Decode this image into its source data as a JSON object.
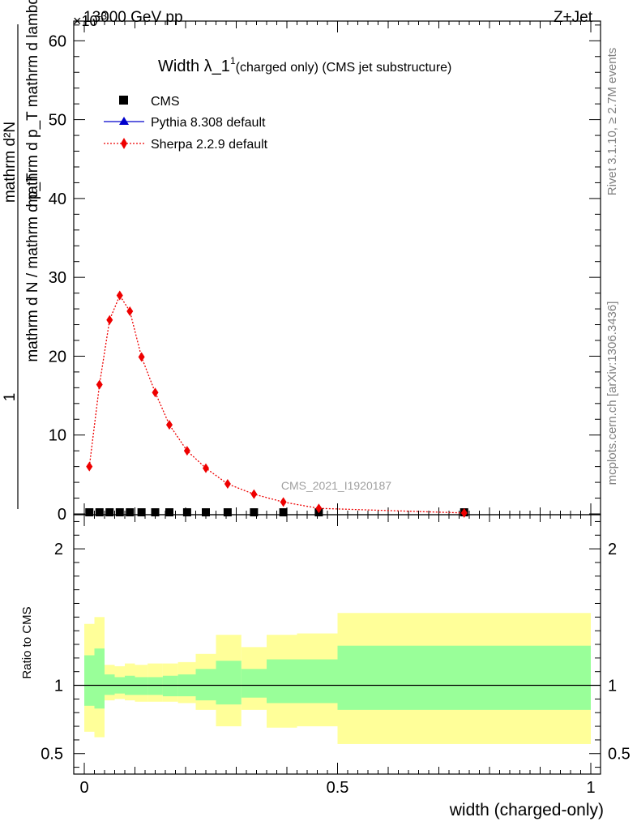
{
  "header": {
    "left": "13000 GeV pp",
    "right": "Z+Jet",
    "exponent": "×10",
    "exponent_power": "-3"
  },
  "side_labels": {
    "rivet": "Rivet 3.1.10, ≥ 2.7M events",
    "mcplots": "mcplots.cern.ch [arXiv:1306.3436]"
  },
  "watermark": "CMS_2021_I1920187",
  "chart_data": [
    {
      "type": "line",
      "title": "Width λ_1",
      "title_sup": "1",
      "subtitle": "(charged only) (CMS jet substructure)",
      "ylabel_top": "mathrm d²N",
      "ylabel_bottom": "mathrm d p_T mathrm d lambda",
      "ylabel_prefix_top": "1",
      "ylabel_prefix_bottom": "mathrm d N / mathrm d p_T",
      "xlim": [
        0,
        1
      ],
      "ylim": [
        0,
        62.5
      ],
      "y_scale_label": "×10^-3",
      "yticks": [
        0,
        10,
        20,
        30,
        40,
        50,
        60
      ],
      "series": [
        {
          "name": "CMS",
          "marker": "square",
          "color": "#000000",
          "x": [
            0.01,
            0.03,
            0.05,
            0.07,
            0.09,
            0.113,
            0.14,
            0.168,
            0.203,
            0.24,
            0.283,
            0.335,
            0.393,
            0.463,
            0.75
          ],
          "y": [
            0.2,
            0.2,
            0.2,
            0.2,
            0.2,
            0.2,
            0.2,
            0.2,
            0.2,
            0.2,
            0.2,
            0.2,
            0.2,
            0.2,
            0.2
          ]
        },
        {
          "name": "Pythia 8.308 default",
          "marker": "triangle",
          "color": "#0000cc",
          "x": [],
          "y": []
        },
        {
          "name": "Sherpa 2.2.9 default",
          "marker": "diamond",
          "color": "#ee0000",
          "x": [
            0.01,
            0.03,
            0.05,
            0.07,
            0.09,
            0.113,
            0.14,
            0.168,
            0.203,
            0.24,
            0.283,
            0.335,
            0.393,
            0.463,
            0.75
          ],
          "y": [
            6.0,
            16.4,
            24.6,
            27.7,
            25.7,
            19.9,
            15.4,
            11.3,
            8.0,
            5.8,
            3.8,
            2.5,
            1.5,
            0.7,
            0.12
          ]
        }
      ],
      "legend": [
        "CMS",
        "Pythia 8.308 default",
        "Sherpa 2.2.9 default"
      ],
      "legend_position": "top-left"
    },
    {
      "type": "area",
      "ylabel": "Ratio to CMS",
      "xlabel": "width (charged-only)",
      "xlim": [
        0,
        1
      ],
      "ylim": [
        0.35,
        2.25
      ],
      "yticks": [
        0.5,
        1,
        2
      ],
      "xticks": [
        0,
        0.5,
        1
      ],
      "xtick_labels": [
        "0",
        "0.5",
        "1"
      ],
      "bins": [
        {
          "lo": 0.0,
          "hi": 0.02,
          "inner_lo": 0.85,
          "inner_hi": 1.22,
          "outer_lo": 0.66,
          "outer_hi": 1.45
        },
        {
          "lo": 0.02,
          "hi": 0.04,
          "inner_lo": 0.83,
          "inner_hi": 1.27,
          "outer_lo": 0.62,
          "outer_hi": 1.5
        },
        {
          "lo": 0.04,
          "hi": 0.06,
          "inner_lo": 0.93,
          "inner_hi": 1.08,
          "outer_lo": 0.89,
          "outer_hi": 1.15
        },
        {
          "lo": 0.06,
          "hi": 0.08,
          "inner_lo": 0.94,
          "inner_hi": 1.06,
          "outer_lo": 0.9,
          "outer_hi": 1.14
        },
        {
          "lo": 0.08,
          "hi": 0.1,
          "inner_lo": 0.93,
          "inner_hi": 1.07,
          "outer_lo": 0.89,
          "outer_hi": 1.16
        },
        {
          "lo": 0.1,
          "hi": 0.125,
          "inner_lo": 0.93,
          "inner_hi": 1.06,
          "outer_lo": 0.88,
          "outer_hi": 1.15
        },
        {
          "lo": 0.125,
          "hi": 0.155,
          "inner_lo": 0.93,
          "inner_hi": 1.06,
          "outer_lo": 0.88,
          "outer_hi": 1.16
        },
        {
          "lo": 0.155,
          "hi": 0.185,
          "inner_lo": 0.92,
          "inner_hi": 1.07,
          "outer_lo": 0.88,
          "outer_hi": 1.16
        },
        {
          "lo": 0.185,
          "hi": 0.22,
          "inner_lo": 0.92,
          "inner_hi": 1.08,
          "outer_lo": 0.87,
          "outer_hi": 1.17
        },
        {
          "lo": 0.22,
          "hi": 0.26,
          "inner_lo": 0.89,
          "inner_hi": 1.12,
          "outer_lo": 0.82,
          "outer_hi": 1.23
        },
        {
          "lo": 0.26,
          "hi": 0.31,
          "inner_lo": 0.86,
          "inner_hi": 1.18,
          "outer_lo": 0.7,
          "outer_hi": 1.37
        },
        {
          "lo": 0.31,
          "hi": 0.36,
          "inner_lo": 0.91,
          "inner_hi": 1.12,
          "outer_lo": 0.82,
          "outer_hi": 1.28
        },
        {
          "lo": 0.36,
          "hi": 0.42,
          "inner_lo": 0.87,
          "inner_hi": 1.19,
          "outer_lo": 0.69,
          "outer_hi": 1.37
        },
        {
          "lo": 0.42,
          "hi": 0.5,
          "inner_lo": 0.87,
          "inner_hi": 1.19,
          "outer_lo": 0.7,
          "outer_hi": 1.38
        },
        {
          "lo": 0.5,
          "hi": 1.0,
          "inner_lo": 0.82,
          "inner_hi": 1.29,
          "outer_lo": 0.57,
          "outer_hi": 1.53
        }
      ],
      "inner_color": "#99ff99",
      "outer_color": "#ffff99"
    }
  ]
}
